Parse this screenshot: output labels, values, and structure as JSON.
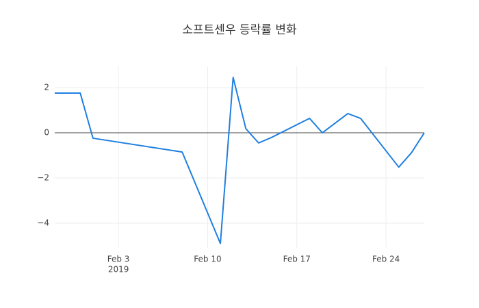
{
  "chart_data": {
    "type": "line",
    "title": "소프트센우 등락률 변화",
    "x": [
      "2019-01-29",
      "2019-01-31",
      "2019-02-01",
      "2019-02-08",
      "2019-02-11",
      "2019-02-12",
      "2019-02-13",
      "2019-02-14",
      "2019-02-15",
      "2019-02-18",
      "2019-02-19",
      "2019-02-21",
      "2019-02-22",
      "2019-02-25",
      "2019-02-26",
      "2019-02-27"
    ],
    "series": [
      {
        "color": "#1f7fe0",
        "values": [
          1.76,
          1.76,
          -0.24,
          -0.85,
          -4.9,
          2.45,
          0.18,
          -0.45,
          -0.21,
          0.64,
          0,
          0.85,
          0.64,
          -1.52,
          -0.88,
          0
        ]
      }
    ],
    "xlim": [
      "2019-01-29",
      "2019-02-27"
    ],
    "xticks": [
      {
        "value": "2019-02-03",
        "label": "Feb 3"
      },
      {
        "value": "2019-02-10",
        "label": "Feb 10"
      },
      {
        "value": "2019-02-17",
        "label": "Feb 17"
      },
      {
        "value": "2019-02-24",
        "label": "Feb 24"
      }
    ],
    "x_year_label": "2019",
    "ylim": [
      -5.09,
      2.94
    ],
    "yticks": [
      {
        "value": -4,
        "label": "−4"
      },
      {
        "value": -2,
        "label": "−2"
      },
      0,
      2
    ],
    "grid": true
  }
}
